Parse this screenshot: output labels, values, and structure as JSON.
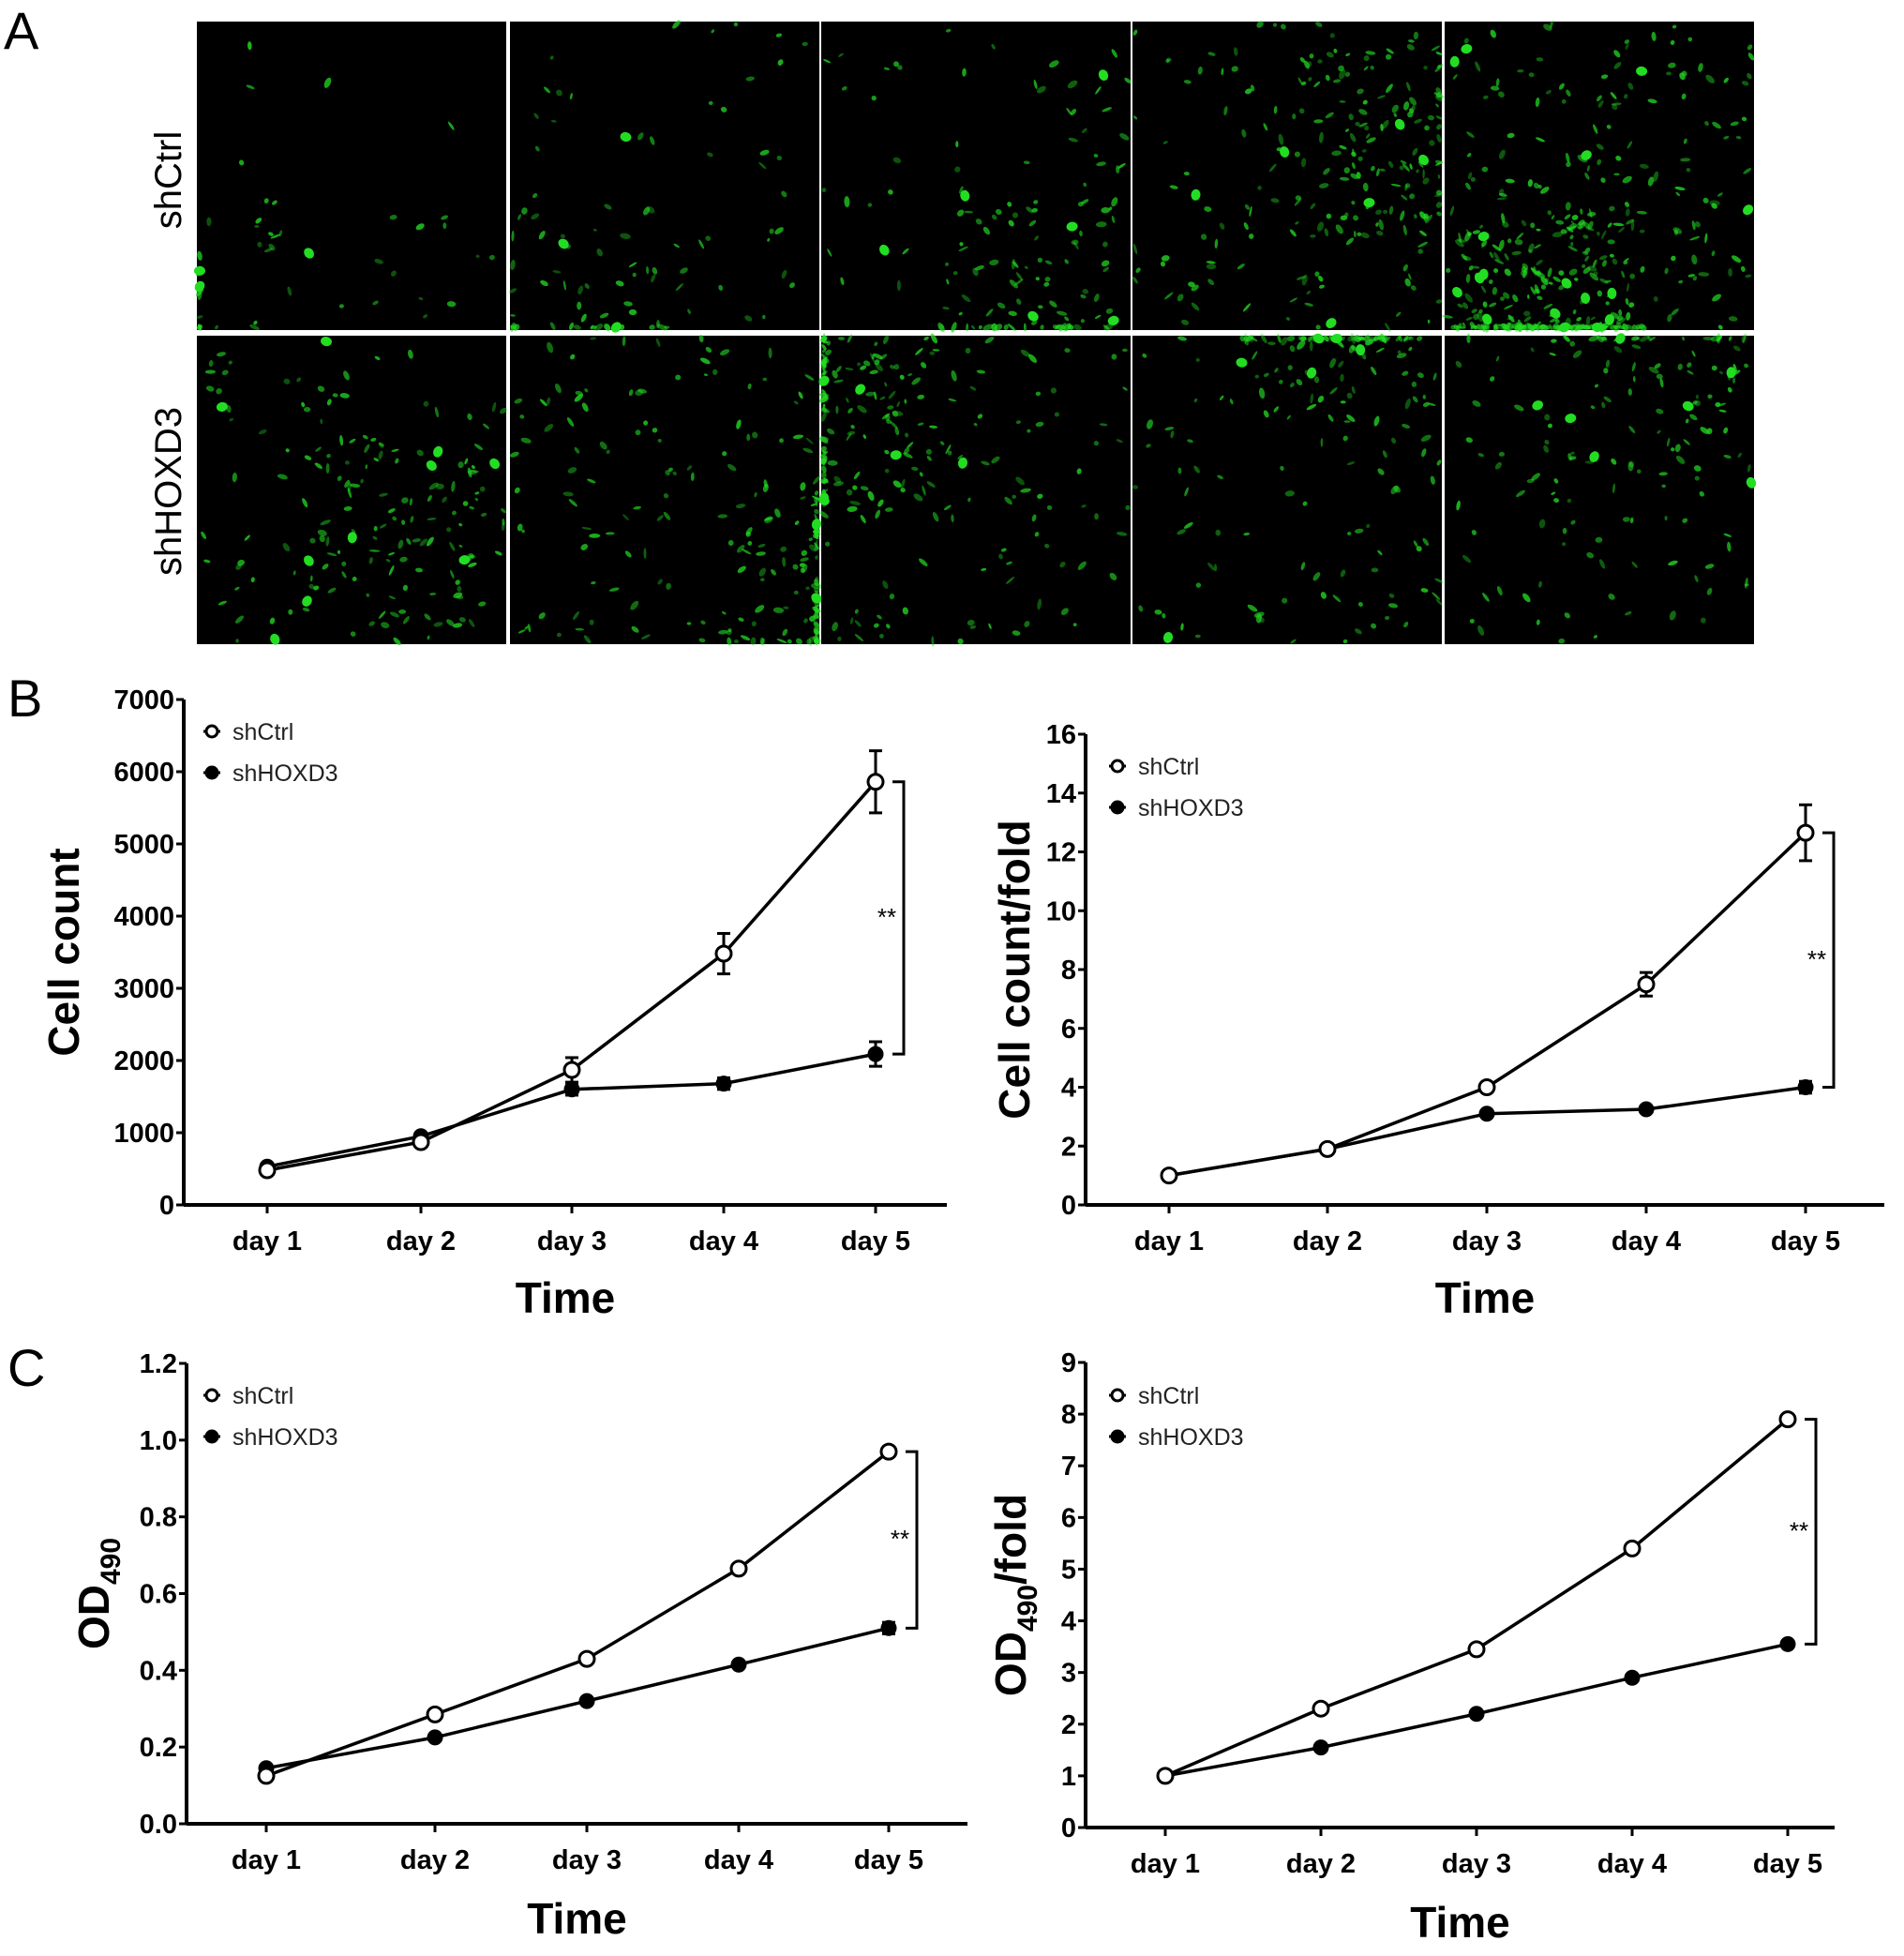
{
  "panel_labels": {
    "a": "A",
    "b": "B",
    "c": "C"
  },
  "micrographs": {
    "rows": [
      "shCtrl",
      "shHOXD3"
    ],
    "columns": 5,
    "fluorescence_color": "#22dd22",
    "background_color": "#000000",
    "cell_density_levels": [
      [
        1,
        2,
        3,
        5,
        9
      ],
      [
        4,
        4.5,
        5,
        4,
        3.5
      ]
    ]
  },
  "chart_data": [
    {
      "type": "line",
      "panel": "B",
      "categories": [
        "day  1",
        "day  2",
        "day  3",
        "day  4",
        "day  5"
      ],
      "xlabel": "Time",
      "ylabel": {
        "main": "Cell count",
        "sub": "",
        "suffix": ""
      },
      "ylim": [
        0,
        7000
      ],
      "yticks": [
        0,
        1000,
        2000,
        3000,
        4000,
        5000,
        6000,
        7000
      ],
      "ytick_labels": [
        "0",
        "1000",
        "2000",
        "3000",
        "4000",
        "5000",
        "6000",
        "7000"
      ],
      "series": [
        {
          "name": "shCtrl",
          "marker": "open-circle",
          "values": [
            480,
            870,
            1870,
            3480,
            5860
          ],
          "errors": [
            50,
            60,
            170,
            280,
            430
          ]
        },
        {
          "name": "shHOXD3",
          "marker": "filled-circle",
          "values": [
            530,
            950,
            1600,
            1680,
            2090
          ],
          "errors": [
            40,
            40,
            80,
            80,
            170
          ]
        }
      ],
      "significance": "**",
      "legend": "top-left",
      "grid": false
    },
    {
      "type": "line",
      "panel": "B",
      "categories": [
        "day  1",
        "day  2",
        "day  3",
        "day  4",
        "day  5"
      ],
      "xlabel": "Time",
      "ylabel": {
        "main": "Cell count/fold",
        "sub": "",
        "suffix": ""
      },
      "ylim": [
        0,
        16
      ],
      "yticks": [
        0,
        2,
        4,
        6,
        8,
        10,
        12,
        14,
        16
      ],
      "ytick_labels": [
        "0",
        "2",
        "4",
        "6",
        "8",
        "10",
        "12",
        "14",
        "16"
      ],
      "series": [
        {
          "name": "shCtrl",
          "marker": "open-circle",
          "values": [
            1,
            1.9,
            4.0,
            7.5,
            12.65
          ],
          "errors": [
            0,
            0.1,
            0.1,
            0.4,
            0.95
          ]
        },
        {
          "name": "shHOXD3",
          "marker": "filled-circle",
          "values": [
            1,
            1.9,
            3.1,
            3.25,
            4.0
          ],
          "errors": [
            0,
            0.05,
            0.05,
            0.05,
            0.2
          ]
        }
      ],
      "significance": "**",
      "legend": "top-left",
      "grid": false
    },
    {
      "type": "line",
      "panel": "C",
      "categories": [
        "day  1",
        "day  2",
        "day  3",
        "day  4",
        "day  5"
      ],
      "xlabel": "Time",
      "ylabel": {
        "main": "OD",
        "sub": "490",
        "suffix": ""
      },
      "ylim": [
        0,
        1.2
      ],
      "yticks": [
        0,
        0.2,
        0.4,
        0.6,
        0.8,
        1.0,
        1.2
      ],
      "ytick_labels": [
        "0.0",
        "0.2",
        "0.4",
        "0.6",
        "0.8",
        "1.0",
        "1.2"
      ],
      "series": [
        {
          "name": "shCtrl",
          "marker": "open-circle",
          "values": [
            0.125,
            0.285,
            0.43,
            0.665,
            0.97
          ],
          "errors": [
            0.005,
            0.005,
            0.005,
            0.005,
            0.01
          ]
        },
        {
          "name": "shHOXD3",
          "marker": "filled-circle",
          "values": [
            0.145,
            0.225,
            0.32,
            0.415,
            0.51
          ],
          "errors": [
            0.005,
            0.005,
            0.005,
            0.005,
            0.015
          ]
        }
      ],
      "significance": "**",
      "legend": "top-left",
      "grid": false
    },
    {
      "type": "line",
      "panel": "C",
      "categories": [
        "day  1",
        "day  2",
        "day  3",
        "day  4",
        "day  5"
      ],
      "xlabel": "Time",
      "ylabel": {
        "main": "OD",
        "sub": "490",
        "suffix": "/fold"
      },
      "ylim": [
        0,
        9
      ],
      "yticks": [
        0,
        1,
        2,
        3,
        4,
        5,
        6,
        7,
        8,
        9
      ],
      "ytick_labels": [
        "0",
        "1",
        "2",
        "3",
        "4",
        "5",
        "6",
        "7",
        "8",
        "9"
      ],
      "series": [
        {
          "name": "shCtrl",
          "marker": "open-circle",
          "values": [
            1,
            2.3,
            3.45,
            5.4,
            7.9
          ],
          "errors": [
            0,
            0,
            0,
            0,
            0
          ]
        },
        {
          "name": "shHOXD3",
          "marker": "filled-circle",
          "values": [
            1,
            1.55,
            2.2,
            2.9,
            3.55
          ],
          "errors": [
            0,
            0,
            0,
            0,
            0
          ]
        }
      ],
      "significance": "**",
      "legend": "top-left",
      "grid": false
    }
  ]
}
